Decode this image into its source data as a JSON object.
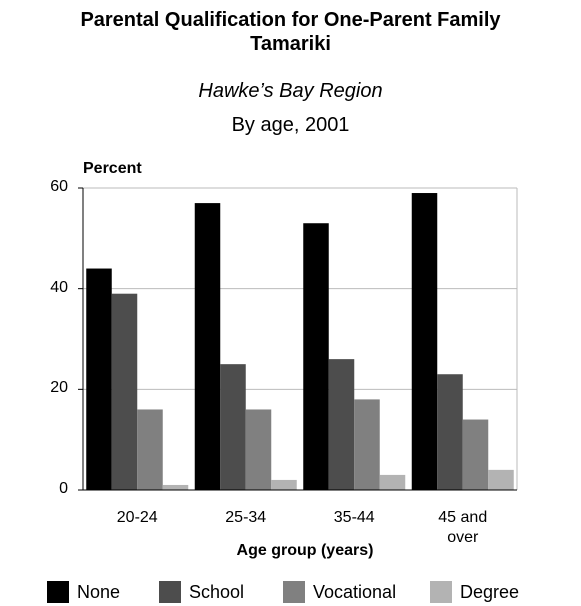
{
  "chart_data": {
    "type": "bar",
    "title": "Parental Qualification for One-Parent Family Tamariki",
    "subtitle": "Hawke’s Bay Region",
    "subtitle2": "By age, 2001",
    "ylabel": "Percent",
    "xlabel": "Age group (years)",
    "categories": [
      "20-24",
      "25-34",
      "35-44",
      "45 and over"
    ],
    "series": [
      {
        "name": "None",
        "color": "#000000",
        "values": [
          44,
          57,
          53,
          59
        ]
      },
      {
        "name": "School",
        "color": "#4d4d4d",
        "values": [
          39,
          25,
          26,
          23
        ]
      },
      {
        "name": "Vocational",
        "color": "#808080",
        "values": [
          16,
          16,
          18,
          14
        ]
      },
      {
        "name": "Degree",
        "color": "#b3b3b3",
        "values": [
          1,
          2,
          3,
          4
        ]
      }
    ],
    "ylim": [
      0,
      60
    ],
    "yticks": [
      0,
      20,
      40,
      60
    ],
    "grid": true,
    "legend": "bottom"
  }
}
